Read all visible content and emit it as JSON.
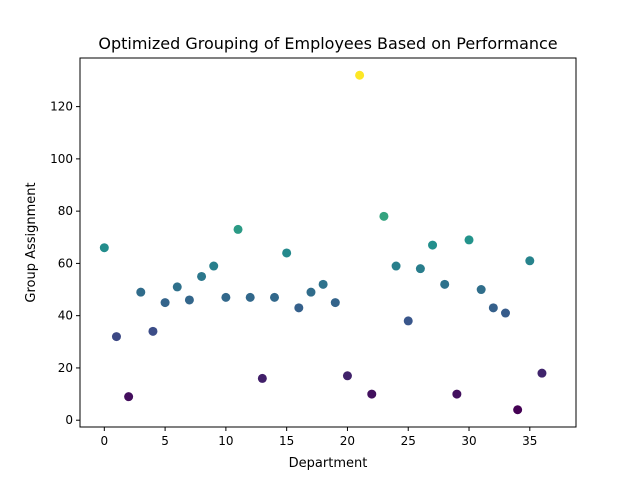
{
  "chart_data": {
    "type": "scatter",
    "title": "Optimized Grouping of Employees Based on Performance",
    "xlabel": "Department",
    "ylabel": "Group Assignment",
    "xlim": [
      -2,
      38.8
    ],
    "ylim": [
      -2.6,
      138.6
    ],
    "xticks": [
      0,
      5,
      10,
      15,
      20,
      25,
      30,
      35
    ],
    "yticks": [
      0,
      20,
      40,
      60,
      80,
      100,
      120
    ],
    "grid": false,
    "colormap": "viridis",
    "x": [
      0,
      1,
      2,
      3,
      4,
      5,
      6,
      7,
      8,
      9,
      10,
      11,
      12,
      13,
      14,
      15,
      16,
      17,
      18,
      19,
      20,
      21,
      22,
      23,
      24,
      25,
      26,
      27,
      28,
      29,
      30,
      31,
      32,
      33,
      34,
      35,
      36
    ],
    "y": [
      66,
      32,
      9,
      49,
      34,
      45,
      51,
      46,
      55,
      59,
      47,
      73,
      47,
      16,
      47,
      64,
      43,
      49,
      52,
      45,
      17,
      132,
      10,
      78,
      59,
      38,
      58,
      67,
      52,
      10,
      69,
      50,
      43,
      41,
      4,
      61,
      18
    ]
  }
}
